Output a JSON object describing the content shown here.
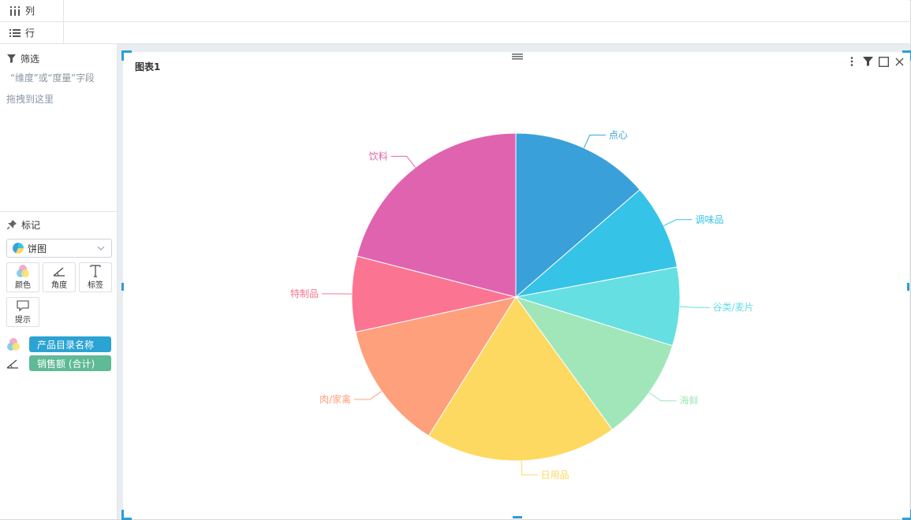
{
  "shelves": {
    "columns_label": "列",
    "rows_label": "行"
  },
  "filter": {
    "title": "筛选",
    "hint_line1": "“维度”或“度量”字段",
    "hint_line2": "拖拽到这里"
  },
  "marks": {
    "title": "标记",
    "chart_type": "饼图",
    "buttons": {
      "color": "颜色",
      "angle": "角度",
      "label": "标签",
      "tooltip": "提示"
    },
    "pills": {
      "color_field": "产品目录名称",
      "angle_field": "销售额 (合计)"
    },
    "colors": {
      "color_pill": "#2ba3d4",
      "angle_pill": "#5fba96"
    }
  },
  "chart": {
    "title": "图表1"
  },
  "chart_data": {
    "type": "pie",
    "title": "图表1",
    "categories": [
      "点心",
      "调味品",
      "谷类/麦片",
      "海鲜",
      "日用品",
      "肉/家禽",
      "特制品",
      "饮料"
    ],
    "values": [
      13.9,
      8.6,
      7.9,
      10.4,
      19.3,
      12.9,
      7.6,
      21.4
    ],
    "colors": [
      "#3aa0da",
      "#35c3e8",
      "#66dfe3",
      "#a0e6b9",
      "#fed961",
      "#fea07c",
      "#fb7592",
      "#e063af"
    ],
    "legend": "none"
  }
}
